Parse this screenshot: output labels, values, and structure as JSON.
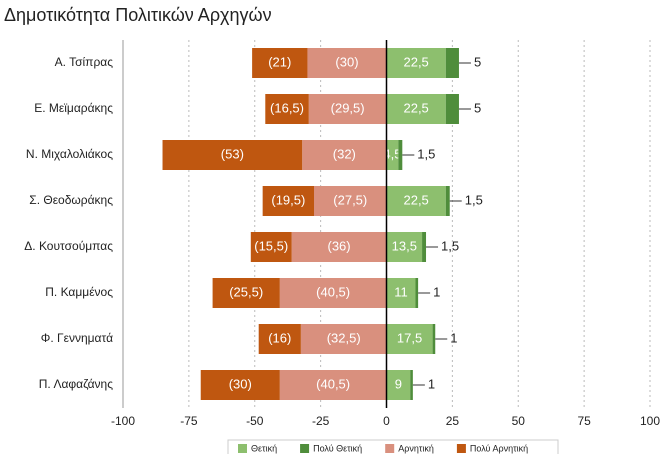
{
  "chart_data": {
    "type": "diverging_bar",
    "title": "Δημοτικότητα Πολιτικών Αρχηγών",
    "categories": [
      "Α. Τσίπρας",
      "Ε. Μεϊμαράκης",
      "Ν. Μιχαλολιάκος",
      "Σ. Θεοδωράκης",
      "Δ. Κουτσούμπας",
      "Π. Καμμένος",
      "Φ. Γεννηματά",
      "Π. Λαφαζάνης"
    ],
    "series": [
      {
        "name": "Θετική",
        "color": "#8dbf6e",
        "label_position": "inside",
        "values": [
          22.5,
          22.5,
          4.5,
          22.5,
          13.5,
          11,
          17.5,
          9
        ],
        "value_labels": [
          "22,5",
          "22,5",
          "4,5",
          "22,5",
          "13,5",
          "11",
          "17,5",
          "9"
        ]
      },
      {
        "name": "Πολύ Θετική",
        "color": "#4f8d3b",
        "label_position": "outside",
        "values": [
          5,
          5,
          1.5,
          1.5,
          1.5,
          1,
          1,
          1
        ],
        "value_labels": [
          "5",
          "5",
          "1,5",
          "1,5",
          "1,5",
          "1",
          "1",
          "1"
        ]
      },
      {
        "name": "Αρνητική",
        "color": "#d9907e",
        "label_position": "inside",
        "values": [
          -30,
          -29.5,
          -32,
          -27.5,
          -36,
          -40.5,
          -32.5,
          -40.5
        ],
        "value_labels": [
          "(30)",
          "(29,5)",
          "(32)",
          "(27,5)",
          "(36)",
          "(40,5)",
          "(32,5)",
          "(40,5)"
        ]
      },
      {
        "name": "Πολύ Αρνητική",
        "color": "#bf5710",
        "label_position": "inside",
        "values": [
          -21,
          -16.5,
          -53,
          -19.5,
          -15.5,
          -25.5,
          -16,
          -30
        ],
        "value_labels": [
          "(21)",
          "(16,5)",
          "(53)",
          "(19,5)",
          "(15,5)",
          "(25,5)",
          "(16)",
          "(30)"
        ]
      }
    ],
    "xlim": [
      -100,
      100
    ],
    "xticks": [
      -100,
      -75,
      -50,
      -25,
      0,
      25,
      50,
      75,
      100
    ],
    "grid": true,
    "legend": "bottom"
  }
}
